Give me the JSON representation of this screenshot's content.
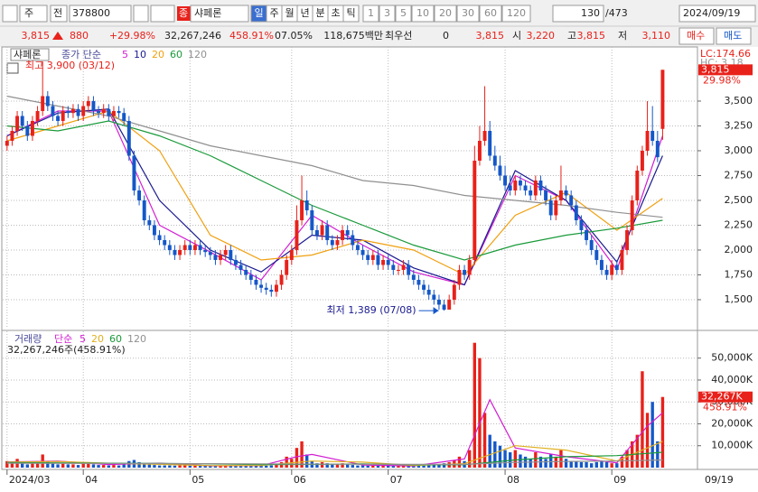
{
  "toolbar": {
    "market": "주",
    "mode": "전",
    "code": "378800",
    "badge": "종",
    "name": "샤페론",
    "periods": [
      "일",
      "주",
      "월",
      "년",
      "분",
      "초",
      "틱"
    ],
    "intervals": [
      "1",
      "3",
      "5",
      "10",
      "20",
      "30",
      "60",
      "120"
    ],
    "count": "130",
    "total": "/473",
    "date": "2024/09/19"
  },
  "quote": {
    "price": "3,815",
    "change": "880",
    "change_rate": "+29.98%",
    "volume": "32,267,246",
    "volume_ratio": "458.91%",
    "turnover": "07.05%",
    "amount": "118,675백만",
    "best_label": "최우선",
    "best": "0",
    "best_price": "3,815",
    "open_label": "시",
    "open": "3,220",
    "high_label": "고",
    "high": "3,815",
    "low_label": "저",
    "low": "3,110",
    "buy": "매수",
    "sell": "매도"
  },
  "chart_data": [
    {
      "type": "candlestick",
      "title": "샤페론",
      "legend_label": "종가 단순",
      "up_color": "#e8211a",
      "down_color": "#1457c8",
      "open": [
        3050,
        3100,
        3200,
        3350,
        3250,
        3150,
        3300,
        3400,
        3550,
        3450,
        3350,
        3300,
        3400,
        3380,
        3420,
        3350,
        3450,
        3500,
        3400,
        3380,
        3420,
        3350,
        3400,
        3380,
        3300,
        2950,
        2600,
        2500,
        2300,
        2250,
        2150,
        2100,
        2050,
        2000,
        1950,
        2000,
        2050,
        2000,
        2050,
        2000,
        1980,
        1950,
        1900,
        1950,
        2000,
        1900,
        1850,
        1800,
        1750,
        1700,
        1650,
        1620,
        1600,
        1580,
        1650,
        1750,
        1900,
        2000,
        2300,
        2500,
        2400,
        2200,
        2150,
        2250,
        2100,
        2050,
        2100,
        2200,
        2150,
        2050,
        2000,
        1950,
        1900,
        1950,
        1850,
        1900,
        1850,
        1800,
        1800,
        1850,
        1750,
        1700,
        1650,
        1600,
        1550,
        1500,
        1450,
        1400,
        1500,
        1650,
        1800,
        1750,
        1900,
        2900,
        3100,
        3200,
        2950,
        2850,
        2750,
        2650,
        2600,
        2700,
        2650,
        2600,
        2550,
        2700,
        2600,
        2500,
        2350,
        2500,
        2600,
        2550,
        2450,
        2300,
        2200,
        2100,
        2000,
        1900,
        1800,
        1750,
        1850,
        1800,
        2000,
        2200,
        2500,
        2800,
        3000,
        3200,
        3100,
        3220
      ],
      "high": [
        3150,
        3250,
        3400,
        3400,
        3300,
        3350,
        3450,
        3900,
        3600,
        3500,
        3400,
        3450,
        3450,
        3470,
        3470,
        3500,
        3550,
        3550,
        3450,
        3470,
        3470,
        3450,
        3450,
        3430,
        3350,
        3000,
        2650,
        2550,
        2350,
        2300,
        2200,
        2150,
        2100,
        2050,
        2050,
        2100,
        2100,
        2100,
        2100,
        2050,
        2030,
        2000,
        2000,
        2050,
        2050,
        1950,
        1900,
        1850,
        1800,
        1750,
        1700,
        1670,
        1650,
        1700,
        1800,
        1950,
        2050,
        2450,
        2750,
        2600,
        2450,
        2250,
        2300,
        2300,
        2150,
        2150,
        2250,
        2250,
        2200,
        2100,
        2050,
        2000,
        2000,
        2000,
        1950,
        1950,
        1900,
        1850,
        1900,
        1900,
        1800,
        1750,
        1700,
        1650,
        1600,
        1550,
        1500,
        1550,
        1700,
        1850,
        1850,
        1950,
        3050,
        3250,
        3650,
        3300,
        3050,
        2950,
        2850,
        2750,
        2750,
        2750,
        2700,
        2650,
        2750,
        2750,
        2650,
        2550,
        2550,
        2850,
        2650,
        2600,
        2500,
        2350,
        2250,
        2150,
        2050,
        1950,
        1850,
        1900,
        1900,
        2050,
        2250,
        2550,
        2850,
        3050,
        3500,
        3450,
        3200,
        3815
      ],
      "low": [
        3000,
        3050,
        3150,
        3200,
        3100,
        3100,
        3250,
        3350,
        3400,
        3300,
        3250,
        3250,
        3330,
        3330,
        3300,
        3300,
        3400,
        3350,
        3330,
        3330,
        3300,
        3300,
        3330,
        3250,
        2900,
        2550,
        2450,
        2250,
        2200,
        2100,
        2050,
        2000,
        1950,
        1900,
        1900,
        1950,
        1950,
        1950,
        1950,
        1930,
        1900,
        1850,
        1850,
        1900,
        1850,
        1800,
        1750,
        1700,
        1650,
        1600,
        1570,
        1550,
        1530,
        1530,
        1600,
        1700,
        1850,
        1950,
        2250,
        2350,
        2150,
        2100,
        2100,
        2050,
        2000,
        2000,
        2050,
        2100,
        2000,
        1950,
        1900,
        1850,
        1850,
        1800,
        1800,
        1800,
        1750,
        1750,
        1750,
        1700,
        1650,
        1600,
        1550,
        1500,
        1450,
        1400,
        1389,
        1400,
        1450,
        1600,
        1700,
        1700,
        1850,
        2850,
        3050,
        2900,
        2800,
        2700,
        2600,
        2550,
        2550,
        2600,
        2550,
        2500,
        2500,
        2550,
        2450,
        2300,
        2300,
        2450,
        2500,
        2400,
        2250,
        2150,
        2050,
        1950,
        1850,
        1750,
        1700,
        1700,
        1750,
        1750,
        1950,
        2150,
        2450,
        2750,
        2950,
        3050,
        2885,
        3110
      ],
      "close": [
        3100,
        3200,
        3350,
        3250,
        3150,
        3300,
        3400,
        3550,
        3450,
        3350,
        3300,
        3400,
        3380,
        3420,
        3350,
        3450,
        3500,
        3400,
        3380,
        3420,
        3350,
        3400,
        3380,
        3300,
        2950,
        2600,
        2500,
        2300,
        2250,
        2150,
        2100,
        2050,
        2000,
        1950,
        2000,
        2050,
        2000,
        2050,
        2000,
        1980,
        1950,
        1900,
        1950,
        2000,
        1900,
        1850,
        1800,
        1750,
        1700,
        1650,
        1620,
        1600,
        1580,
        1650,
        1750,
        1900,
        2000,
        2300,
        2500,
        2400,
        2200,
        2150,
        2250,
        2100,
        2050,
        2100,
        2200,
        2150,
        2050,
        2000,
        1950,
        1900,
        1950,
        1850,
        1900,
        1850,
        1800,
        1800,
        1850,
        1750,
        1700,
        1650,
        1600,
        1550,
        1500,
        1450,
        1400,
        1500,
        1650,
        1800,
        1750,
        1900,
        2900,
        3100,
        3200,
        2950,
        2850,
        2750,
        2650,
        2600,
        2700,
        2650,
        2600,
        2550,
        2700,
        2600,
        2500,
        2350,
        2500,
        2600,
        2550,
        2450,
        2300,
        2200,
        2100,
        2000,
        1900,
        1800,
        1750,
        1850,
        1800,
        2000,
        2200,
        2500,
        2800,
        3000,
        3200,
        3100,
        2935,
        3815
      ],
      "ylim": [
        1227,
        4018
      ],
      "yticks": [
        {
          "value": 1500,
          "label": "1,500"
        },
        {
          "value": 1750,
          "label": "1,750"
        },
        {
          "value": 2000,
          "label": "2,000"
        },
        {
          "value": 2250,
          "label": "2,250"
        },
        {
          "value": 2500,
          "label": "2,500"
        },
        {
          "value": 2750,
          "label": "2,750"
        },
        {
          "value": 3000,
          "label": "3,000"
        },
        {
          "value": 3250,
          "label": "3,250"
        },
        {
          "value": 3500,
          "label": "3,500"
        }
      ],
      "grid": true,
      "series": [
        {
          "name": "5",
          "color": "#d21ed2",
          "x": [
            0,
            10,
            20,
            30,
            40,
            50,
            60,
            70,
            80,
            90,
            100,
            110,
            120,
            129
          ],
          "values": [
            3150,
            3400,
            3400,
            2250,
            1980,
            1700,
            2350,
            2050,
            1780,
            1650,
            2750,
            2500,
            1800,
            3150
          ]
        },
        {
          "name": "10",
          "color": "#1a1a90",
          "x": [
            0,
            10,
            20,
            30,
            40,
            50,
            60,
            70,
            80,
            90,
            100,
            110,
            120,
            129
          ],
          "values": [
            3150,
            3380,
            3420,
            2500,
            2000,
            1780,
            2150,
            2100,
            1820,
            1650,
            2800,
            2500,
            1880,
            2950
          ]
        },
        {
          "name": "20",
          "color": "#f0a010",
          "x": [
            0,
            10,
            20,
            30,
            40,
            50,
            60,
            70,
            80,
            90,
            100,
            110,
            120,
            129
          ],
          "values": [
            3100,
            3250,
            3400,
            3000,
            2150,
            1900,
            1950,
            2100,
            2000,
            1750,
            2350,
            2580,
            2200,
            2520
          ]
        },
        {
          "name": "60",
          "color": "#1a9a3a",
          "x": [
            0,
            10,
            20,
            30,
            40,
            50,
            60,
            70,
            80,
            90,
            100,
            110,
            120,
            129
          ],
          "values": [
            3250,
            3200,
            3300,
            3150,
            2950,
            2700,
            2450,
            2250,
            2050,
            1900,
            2050,
            2150,
            2220,
            2300
          ]
        },
        {
          "name": "120",
          "color": "#909090",
          "x": [
            0,
            10,
            20,
            30,
            40,
            50,
            60,
            70,
            80,
            90,
            100,
            110,
            120,
            129
          ],
          "values": [
            3550,
            3450,
            3350,
            3200,
            3050,
            2950,
            2850,
            2700,
            2650,
            2550,
            2500,
            2450,
            2380,
            2330
          ]
        }
      ],
      "high_note": "최고 3,900 (03/12)",
      "low_note": "최저 1,389 (07/08)",
      "lc_label": "LC:174.66",
      "hc_label": "HC: 3.18",
      "last_label": "3,815",
      "last_rate": "29.98%"
    },
    {
      "type": "bar",
      "title": "거래량",
      "legend_label": "단순",
      "values": [
        3000,
        2500,
        4000,
        2000,
        1500,
        2500,
        3000,
        6000,
        3000,
        2000,
        1500,
        2000,
        1500,
        1500,
        1200,
        2000,
        2500,
        1500,
        1200,
        1200,
        1000,
        1200,
        1000,
        1500,
        3000,
        3500,
        2500,
        2000,
        1500,
        1200,
        1000,
        1000,
        1000,
        900,
        1000,
        1200,
        900,
        900,
        800,
        800,
        700,
        800,
        900,
        1000,
        800,
        800,
        700,
        700,
        800,
        900,
        1000,
        900,
        1000,
        1500,
        2500,
        5000,
        4000,
        9000,
        12000,
        6000,
        3000,
        2000,
        2500,
        2000,
        1500,
        1500,
        2000,
        1500,
        1200,
        1000,
        1000,
        900,
        900,
        1000,
        900,
        900,
        800,
        800,
        900,
        800,
        700,
        800,
        900,
        1000,
        1200,
        1500,
        2000,
        2500,
        3500,
        5000,
        3000,
        8000,
        57000,
        50000,
        25000,
        15000,
        12000,
        10000,
        8000,
        7000,
        8000,
        6000,
        5000,
        4000,
        7000,
        5000,
        4000,
        6000,
        5000,
        8000,
        4000,
        3000,
        3000,
        2500,
        2500,
        2000,
        2500,
        3000,
        2500,
        2000,
        2000,
        5000,
        8000,
        12000,
        15000,
        44000,
        25000,
        30000,
        12000,
        32267
      ],
      "ylim": [
        0,
        61000
      ],
      "yticks": [
        {
          "value": 10000,
          "label": "10,000K"
        },
        {
          "value": 20000,
          "label": "20,000K"
        },
        {
          "value": 30000,
          "label": "30,000K"
        },
        {
          "value": 40000,
          "label": "40,000K"
        },
        {
          "value": 50000,
          "label": "50,000K"
        }
      ],
      "grid": true,
      "series": [
        {
          "name": "5",
          "color": "#d21ed2",
          "x": [
            0,
            10,
            20,
            30,
            40,
            50,
            57,
            60,
            70,
            80,
            90,
            95,
            100,
            110,
            120,
            126,
            129
          ],
          "values": [
            2600,
            3000,
            1400,
            2000,
            820,
            900,
            5000,
            6000,
            1200,
            800,
            4000,
            31000,
            9000,
            5000,
            2200,
            19000,
            25000
          ]
        },
        {
          "name": "20",
          "color": "#e0b020",
          "x": [
            0,
            10,
            20,
            30,
            40,
            50,
            60,
            70,
            80,
            90,
            100,
            110,
            120,
            129
          ],
          "values": [
            2500,
            2800,
            2000,
            1500,
            900,
            1000,
            3000,
            2500,
            1000,
            1800,
            10000,
            8000,
            3000,
            12000
          ]
        },
        {
          "name": "60",
          "color": "#1a9a3a",
          "x": [
            0,
            10,
            20,
            30,
            40,
            50,
            60,
            70,
            80,
            90,
            100,
            110,
            120,
            129
          ],
          "values": [
            2300,
            2200,
            2000,
            1900,
            1700,
            1400,
            1500,
            1700,
            1300,
            1300,
            3500,
            5000,
            5500,
            7000
          ]
        },
        {
          "name": "120",
          "color": "#909090",
          "x": [
            0,
            10,
            20,
            30,
            40,
            50,
            60,
            70,
            80,
            90,
            100,
            110,
            120,
            129
          ],
          "values": [
            2000,
            1950,
            1900,
            1850,
            1800,
            1700,
            1600,
            1550,
            1500,
            1500,
            2400,
            2800,
            3000,
            3500
          ]
        }
      ],
      "summary": "32,267,246주(458.91%)",
      "last_label": "32,267K",
      "last_rate": "458.91%",
      "xticks": [
        {
          "value": 0,
          "label": "2024/03"
        },
        {
          "value": 15,
          "label": "04"
        },
        {
          "value": 36,
          "label": "05"
        },
        {
          "value": 56,
          "label": "06"
        },
        {
          "value": 75,
          "label": "07"
        },
        {
          "value": 98,
          "label": "08"
        },
        {
          "value": 119,
          "label": "09"
        }
      ],
      "last_date": "09/19"
    }
  ]
}
